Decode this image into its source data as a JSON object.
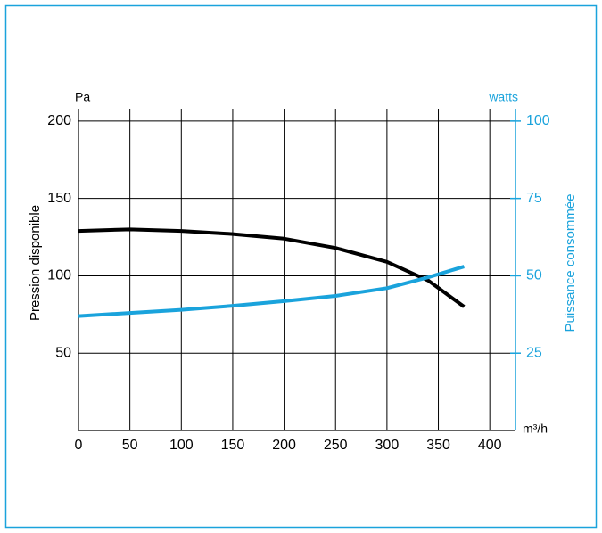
{
  "chart_data": {
    "type": "line",
    "ylabel": "Pression disponible",
    "y2label": "Puissance consommée",
    "yunit": "Pa",
    "y2unit": "watts",
    "xunit": "m³/h",
    "x": [
      0,
      50,
      100,
      150,
      200,
      250,
      300,
      340,
      375
    ],
    "series": [
      {
        "color": "#000000",
        "values": [
          129,
          130,
          129,
          127,
          124,
          118,
          109,
          97,
          80
        ]
      },
      {
        "color": "#1aa3dc",
        "axis": "y2",
        "values": [
          37,
          38,
          39,
          40.3,
          41.8,
          43.5,
          46,
          49.5,
          53
        ]
      }
    ],
    "xlim": [
      0,
      425
    ],
    "xticks": [
      0,
      50,
      100,
      150,
      200,
      250,
      300,
      350,
      400
    ],
    "ylim": [
      0,
      208
    ],
    "yticks": [
      50,
      100,
      150,
      200
    ],
    "y2lim": [
      0,
      104
    ],
    "y2ticks": [
      25,
      50,
      75,
      100
    ],
    "grid": true,
    "axis_color": "#1aa3dc"
  }
}
